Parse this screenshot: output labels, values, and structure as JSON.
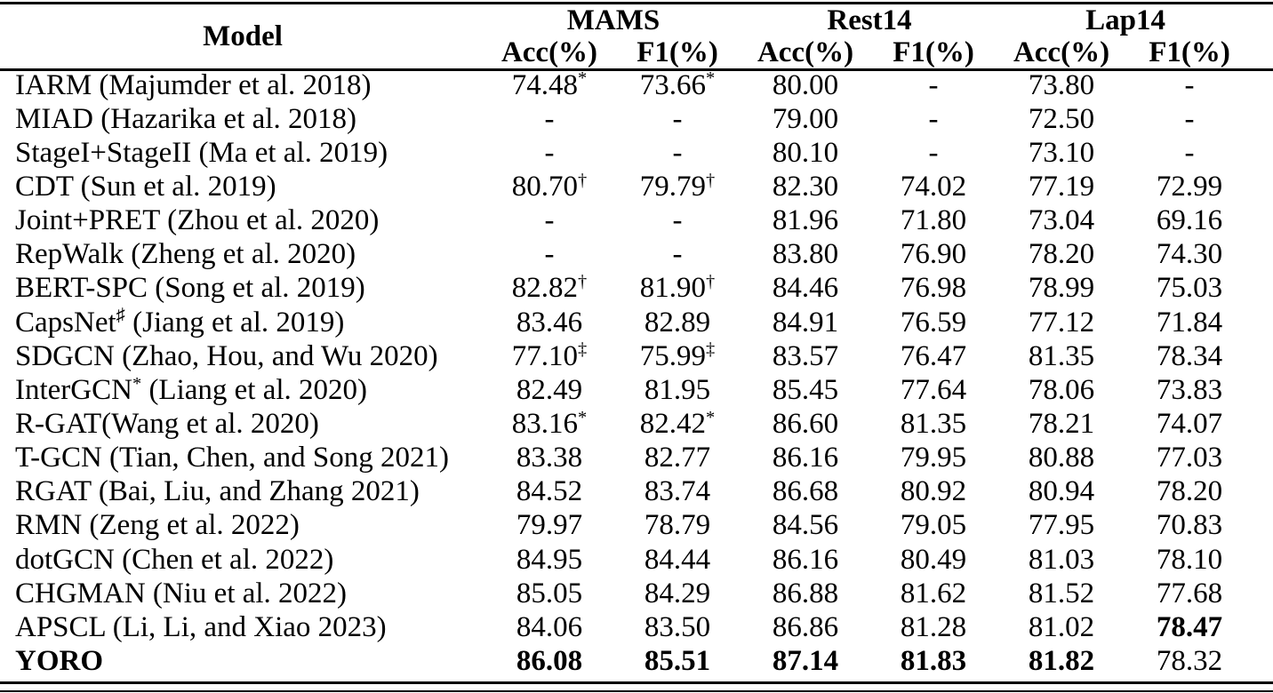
{
  "table": {
    "model_header": "Model",
    "groups": [
      "MAMS",
      "Rest14",
      "Lap14"
    ],
    "subheaders": [
      "Acc(%)",
      "F1(%)",
      "Acc(%)",
      "F1(%)",
      "Acc(%)",
      "F1(%)"
    ],
    "rows": [
      {
        "model": "IARM (Majumder et al. 2018)",
        "cells": [
          {
            "v": "74.48",
            "sup": "*"
          },
          {
            "v": "73.66",
            "sup": "*"
          },
          {
            "v": "80.00"
          },
          {
            "v": "-"
          },
          {
            "v": "73.80"
          },
          {
            "v": "-"
          }
        ]
      },
      {
        "model": "MIAD (Hazarika et al. 2018)",
        "cells": [
          {
            "v": "-"
          },
          {
            "v": "-"
          },
          {
            "v": "79.00"
          },
          {
            "v": "-"
          },
          {
            "v": "72.50"
          },
          {
            "v": "-"
          }
        ]
      },
      {
        "model": "StageI+StageII (Ma et al. 2019)",
        "cells": [
          {
            "v": "-"
          },
          {
            "v": "-"
          },
          {
            "v": "80.10"
          },
          {
            "v": "-"
          },
          {
            "v": "73.10"
          },
          {
            "v": "-"
          }
        ]
      },
      {
        "model": "CDT (Sun et al. 2019)",
        "cells": [
          {
            "v": "80.70",
            "sup": "†"
          },
          {
            "v": "79.79",
            "sup": "†"
          },
          {
            "v": "82.30"
          },
          {
            "v": "74.02"
          },
          {
            "v": "77.19"
          },
          {
            "v": "72.99"
          }
        ]
      },
      {
        "model": "Joint+PRET (Zhou et al. 2020)",
        "cells": [
          {
            "v": "-"
          },
          {
            "v": "-"
          },
          {
            "v": "81.96"
          },
          {
            "v": "71.80"
          },
          {
            "v": "73.04"
          },
          {
            "v": "69.16"
          }
        ]
      },
      {
        "model": "RepWalk (Zheng et al. 2020)",
        "cells": [
          {
            "v": "-"
          },
          {
            "v": "-"
          },
          {
            "v": "83.80"
          },
          {
            "v": "76.90"
          },
          {
            "v": "78.20"
          },
          {
            "v": "74.30"
          }
        ]
      },
      {
        "model": "BERT-SPC (Song et al. 2019)",
        "cells": [
          {
            "v": "82.82",
            "sup": "†"
          },
          {
            "v": "81.90",
            "sup": "†"
          },
          {
            "v": "84.46"
          },
          {
            "v": "76.98"
          },
          {
            "v": "78.99"
          },
          {
            "v": "75.03"
          }
        ]
      },
      {
        "model": "CapsNet",
        "model_sup": "♯",
        "model_rest": " (Jiang et al. 2019)",
        "cells": [
          {
            "v": "83.46"
          },
          {
            "v": "82.89"
          },
          {
            "v": "84.91"
          },
          {
            "v": "76.59"
          },
          {
            "v": "77.12"
          },
          {
            "v": "71.84"
          }
        ]
      },
      {
        "model": "SDGCN (Zhao, Hou, and Wu 2020)",
        "cells": [
          {
            "v": "77.10",
            "sup": "‡"
          },
          {
            "v": "75.99",
            "sup": "‡"
          },
          {
            "v": "83.57"
          },
          {
            "v": "76.47"
          },
          {
            "v": "81.35"
          },
          {
            "v": "78.34"
          }
        ]
      },
      {
        "model": "InterGCN",
        "model_sup": "*",
        "model_rest": " (Liang et al. 2020)",
        "cells": [
          {
            "v": "82.49"
          },
          {
            "v": "81.95"
          },
          {
            "v": "85.45"
          },
          {
            "v": "77.64"
          },
          {
            "v": "78.06"
          },
          {
            "v": "73.83"
          }
        ]
      },
      {
        "model": "R-GAT(Wang et al. 2020)",
        "cells": [
          {
            "v": "83.16",
            "sup": "*"
          },
          {
            "v": "82.42",
            "sup": "*"
          },
          {
            "v": "86.60"
          },
          {
            "v": "81.35"
          },
          {
            "v": "78.21"
          },
          {
            "v": "74.07"
          }
        ]
      },
      {
        "model": "T-GCN (Tian, Chen, and Song 2021)",
        "cells": [
          {
            "v": "83.38"
          },
          {
            "v": "82.77"
          },
          {
            "v": "86.16"
          },
          {
            "v": "79.95"
          },
          {
            "v": "80.88"
          },
          {
            "v": "77.03"
          }
        ]
      },
      {
        "model": "RGAT (Bai, Liu, and Zhang 2021)",
        "cells": [
          {
            "v": "84.52"
          },
          {
            "v": "83.74"
          },
          {
            "v": "86.68"
          },
          {
            "v": "80.92"
          },
          {
            "v": "80.94"
          },
          {
            "v": "78.20"
          }
        ]
      },
      {
        "model": "RMN (Zeng et al. 2022)",
        "cells": [
          {
            "v": "79.97"
          },
          {
            "v": "78.79"
          },
          {
            "v": "84.56"
          },
          {
            "v": "79.05"
          },
          {
            "v": "77.95"
          },
          {
            "v": "70.83"
          }
        ]
      },
      {
        "model": "dotGCN (Chen et al. 2022)",
        "cells": [
          {
            "v": "84.95"
          },
          {
            "v": "84.44"
          },
          {
            "v": "86.16"
          },
          {
            "v": "80.49"
          },
          {
            "v": "81.03"
          },
          {
            "v": "78.10"
          }
        ]
      },
      {
        "model": "CHGMAN (Niu et al. 2022)",
        "cells": [
          {
            "v": "85.05"
          },
          {
            "v": "84.29"
          },
          {
            "v": "86.88"
          },
          {
            "v": "81.62"
          },
          {
            "v": "81.52"
          },
          {
            "v": "77.68"
          }
        ]
      },
      {
        "model": "APSCL (Li, Li, and Xiao 2023)",
        "cells": [
          {
            "v": "84.06"
          },
          {
            "v": "83.50"
          },
          {
            "v": "86.86"
          },
          {
            "v": "81.28"
          },
          {
            "v": "81.02"
          },
          {
            "v": "78.47",
            "bold": true
          }
        ]
      },
      {
        "model": "YORO",
        "bold": true,
        "cells": [
          {
            "v": "86.08",
            "bold": true
          },
          {
            "v": "85.51",
            "bold": true
          },
          {
            "v": "87.14",
            "bold": true
          },
          {
            "v": "81.83",
            "bold": true
          },
          {
            "v": "81.82",
            "bold": true
          },
          {
            "v": "78.32"
          }
        ]
      }
    ]
  },
  "colors": {
    "text": "#000000",
    "background": "#ffffff",
    "rule": "#000000"
  }
}
